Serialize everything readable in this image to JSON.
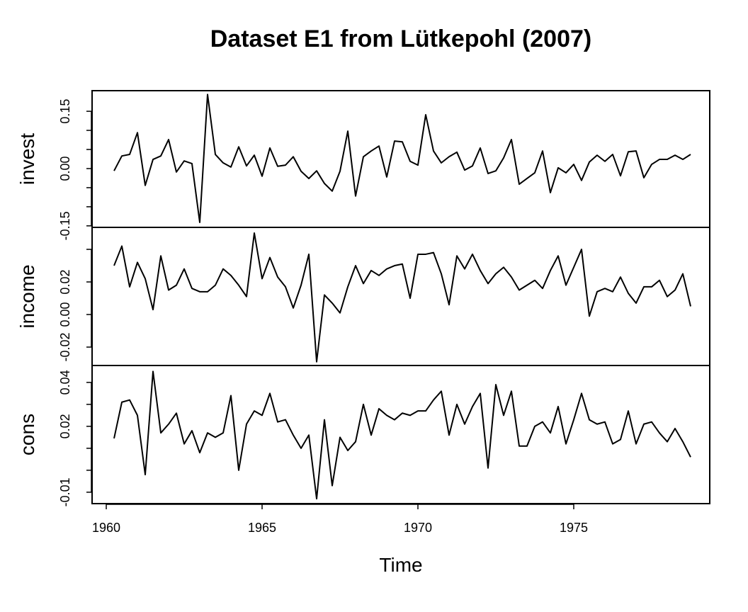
{
  "title": "Dataset E1 from Lütkepohl (2007)",
  "chart_data": [
    {
      "type": "line",
      "ylabel": "invest",
      "color": "#000000",
      "x": [
        1960.25,
        1960.5,
        1960.75,
        1961,
        1961.25,
        1961.5,
        1961.75,
        1962,
        1962.25,
        1962.5,
        1962.75,
        1963,
        1963.25,
        1963.5,
        1963.75,
        1964,
        1964.25,
        1964.5,
        1964.75,
        1965,
        1965.25,
        1965.5,
        1965.75,
        1966,
        1966.25,
        1966.5,
        1966.75,
        1967,
        1967.25,
        1967.5,
        1967.75,
        1968,
        1968.25,
        1968.5,
        1968.75,
        1969,
        1969.25,
        1969.5,
        1969.75,
        1970,
        1970.25,
        1970.5,
        1970.75,
        1971,
        1971.25,
        1971.5,
        1971.75,
        1972,
        1972.25,
        1972.5,
        1972.75,
        1973,
        1973.25,
        1973.5,
        1973.75,
        1974,
        1974.25,
        1974.5,
        1974.75,
        1975,
        1975.25,
        1975.5,
        1975.75,
        1976,
        1976.25,
        1976.5,
        1976.75,
        1977,
        1977.25,
        1977.5,
        1977.75,
        1978,
        1978.25,
        1978.5,
        1978.75
      ],
      "values": [
        -0.006,
        0.033,
        0.037,
        0.094,
        -0.044,
        0.024,
        0.033,
        0.076,
        -0.009,
        0.02,
        0.013,
        -0.141,
        0.194,
        0.037,
        0.015,
        0.004,
        0.057,
        0.007,
        0.035,
        -0.02,
        0.054,
        0.006,
        0.009,
        0.031,
        -0.007,
        -0.026,
        -0.006,
        -0.039,
        -0.059,
        -0.007,
        0.098,
        -0.072,
        0.031,
        0.046,
        0.059,
        -0.022,
        0.072,
        0.07,
        0.019,
        0.009,
        0.141,
        0.046,
        0.015,
        0.031,
        0.043,
        -0.004,
        0.007,
        0.054,
        -0.013,
        -0.006,
        0.028,
        0.076,
        -0.041,
        -0.026,
        -0.011,
        0.046,
        -0.063,
        0.002,
        -0.011,
        0.011,
        -0.031,
        0.017,
        0.035,
        0.019,
        0.037,
        -0.019,
        0.044,
        0.046,
        -0.024,
        0.011,
        0.024,
        0.024,
        0.035,
        0.024,
        0.037
      ],
      "xlim": [
        1959.545,
        1979.364
      ],
      "ylim": [
        -0.154,
        0.204
      ],
      "yticks": [
        -0.15,
        {
          "value": 0,
          "label": "0.00"
        },
        0.15
      ],
      "yticks_minor": [
        -0.1,
        -0.05,
        0.05,
        0.1
      ]
    },
    {
      "type": "line",
      "ylabel": "income",
      "color": "#000000",
      "x": [
        1960.25,
        1960.5,
        1960.75,
        1961,
        1961.25,
        1961.5,
        1961.75,
        1962,
        1962.25,
        1962.5,
        1962.75,
        1963,
        1963.25,
        1963.5,
        1963.75,
        1964,
        1964.25,
        1964.5,
        1964.75,
        1965,
        1965.25,
        1965.5,
        1965.75,
        1966,
        1966.25,
        1966.5,
        1966.75,
        1967,
        1967.25,
        1967.5,
        1967.75,
        1968,
        1968.25,
        1968.5,
        1968.75,
        1969,
        1969.25,
        1969.5,
        1969.75,
        1970,
        1970.25,
        1970.5,
        1970.75,
        1971,
        1971.25,
        1971.5,
        1971.75,
        1972,
        1972.25,
        1972.5,
        1972.75,
        1973,
        1973.25,
        1973.5,
        1973.75,
        1974,
        1974.25,
        1974.5,
        1974.75,
        1975,
        1975.25,
        1975.5,
        1975.75,
        1976,
        1976.25,
        1976.5,
        1976.75,
        1977,
        1977.25,
        1977.5,
        1977.75,
        1978,
        1978.25,
        1978.5,
        1978.75
      ],
      "values": [
        0.03,
        0.042,
        0.017,
        0.032,
        0.022,
        0.003,
        0.036,
        0.015,
        0.018,
        0.028,
        0.016,
        0.014,
        0.014,
        0.018,
        0.028,
        0.024,
        0.018,
        0.011,
        0.05,
        0.022,
        0.035,
        0.023,
        0.017,
        0.004,
        0.018,
        0.037,
        -0.029,
        0.012,
        0.007,
        0.001,
        0.017,
        0.03,
        0.019,
        0.027,
        0.024,
        0.028,
        0.03,
        0.031,
        0.01,
        0.037,
        0.037,
        0.038,
        0.025,
        0.006,
        0.036,
        0.028,
        0.037,
        0.027,
        0.019,
        0.025,
        0.029,
        0.023,
        0.015,
        0.018,
        0.021,
        0.016,
        0.027,
        0.036,
        0.018,
        0.029,
        0.04,
        -0.001,
        0.014,
        0.016,
        0.014,
        0.023,
        0.013,
        0.007,
        0.017,
        0.017,
        0.021,
        0.011,
        0.015,
        0.025,
        0.005
      ],
      "xlim": [
        1959.545,
        1979.364
      ],
      "ylim": [
        -0.0313,
        0.0535
      ],
      "yticks": [
        -0.02,
        {
          "value": 0,
          "label": "0.00"
        },
        0.02
      ],
      "yticks_minor": [
        0.04
      ]
    },
    {
      "type": "line",
      "ylabel": "cons",
      "color": "#000000",
      "xlabel": "Time",
      "x": [
        1960.25,
        1960.5,
        1960.75,
        1961,
        1961.25,
        1961.5,
        1961.75,
        1962,
        1962.25,
        1962.5,
        1962.75,
        1963,
        1963.25,
        1963.5,
        1963.75,
        1964,
        1964.25,
        1964.5,
        1964.75,
        1965,
        1965.25,
        1965.5,
        1965.75,
        1966,
        1966.25,
        1966.5,
        1966.75,
        1967,
        1967.25,
        1967.5,
        1967.75,
        1968,
        1968.25,
        1968.5,
        1968.75,
        1969,
        1969.25,
        1969.5,
        1969.75,
        1970,
        1970.25,
        1970.5,
        1970.75,
        1971,
        1971.25,
        1971.5,
        1971.75,
        1972,
        1972.25,
        1972.5,
        1972.75,
        1973,
        1973.25,
        1973.5,
        1973.75,
        1974,
        1974.25,
        1974.5,
        1974.75,
        1975,
        1975.25,
        1975.5,
        1975.75,
        1976,
        1976.25,
        1976.5,
        1976.75,
        1977,
        1977.25,
        1977.5,
        1977.75,
        1978,
        1978.25,
        1978.5,
        1978.75
      ],
      "values": [
        0.0145,
        0.031,
        0.032,
        0.025,
        -0.002,
        0.045,
        0.017,
        0.021,
        0.026,
        0.012,
        0.018,
        0.008,
        0.017,
        0.015,
        0.017,
        0.034,
        0.0,
        0.021,
        0.027,
        0.025,
        0.035,
        0.022,
        0.023,
        0.016,
        0.01,
        0.016,
        -0.013,
        0.023,
        -0.007,
        0.015,
        0.009,
        0.013,
        0.03,
        0.016,
        0.028,
        0.025,
        0.023,
        0.026,
        0.025,
        0.027,
        0.027,
        0.032,
        0.036,
        0.016,
        0.03,
        0.021,
        0.029,
        0.035,
        0.001,
        0.039,
        0.025,
        0.036,
        0.011,
        0.011,
        0.02,
        0.022,
        0.017,
        0.029,
        0.012,
        0.023,
        0.035,
        0.023,
        0.021,
        0.022,
        0.012,
        0.014,
        0.027,
        0.012,
        0.021,
        0.022,
        0.017,
        0.013,
        0.019,
        0.013,
        0.006
      ],
      "xlim": [
        1959.545,
        1979.364
      ],
      "ylim": [
        -0.0152,
        0.0477
      ],
      "yticks": [
        -0.01,
        0.02,
        0.04
      ],
      "yticks_minor": [
        0.0,
        0.01,
        0.03
      ],
      "xticks": [
        1960,
        1965,
        1970,
        1975
      ]
    }
  ]
}
